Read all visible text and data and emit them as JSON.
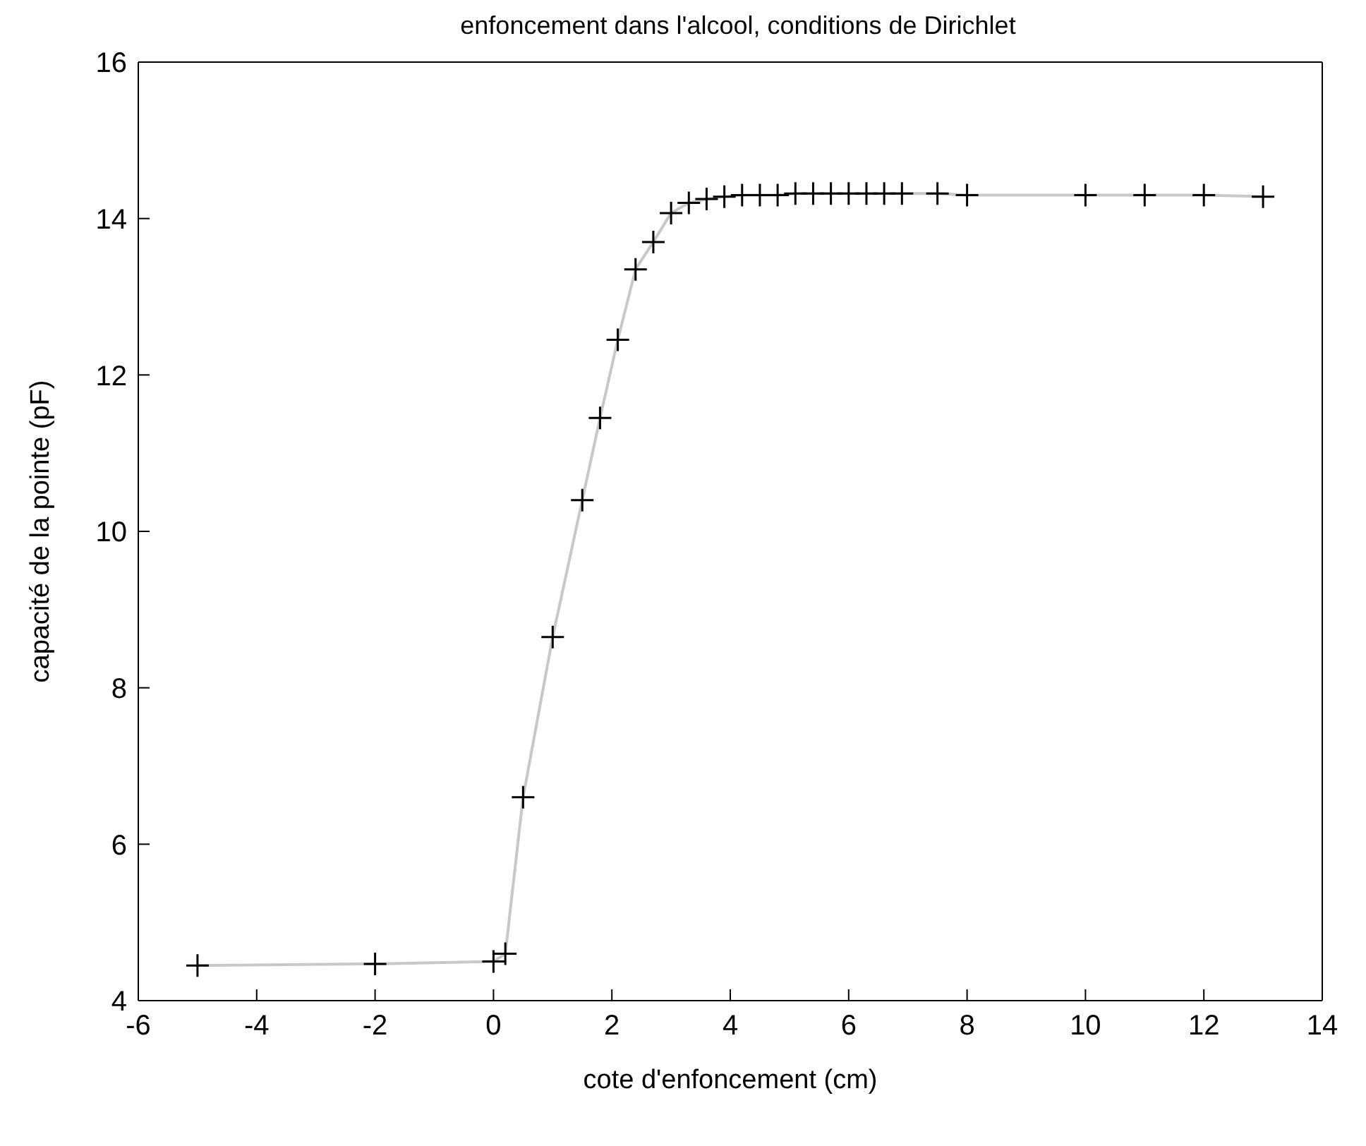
{
  "chart_data": {
    "type": "line",
    "title": "enfoncement dans l'alcool, conditions de Dirichlet",
    "xlabel": "cote d'enfoncement (cm)",
    "ylabel": "capacité de la pointe (pF)",
    "x": [
      -5,
      -2,
      0,
      0.2,
      0.5,
      1.0,
      1.5,
      1.8,
      2.1,
      2.4,
      2.7,
      3.0,
      3.3,
      3.6,
      3.9,
      4.2,
      4.5,
      4.8,
      5.1,
      5.4,
      5.7,
      6.0,
      6.3,
      6.6,
      6.9,
      7.5,
      8,
      10,
      11,
      12,
      13
    ],
    "series": [
      {
        "color": "#c8c8c8",
        "marker": "none",
        "values": [
          4.45,
          4.47,
          4.5,
          4.6,
          6.6,
          8.65,
          10.4,
          11.45,
          12.45,
          13.35,
          13.7,
          14.07,
          14.2,
          14.25,
          14.28,
          14.3,
          14.3,
          14.3,
          14.32,
          14.32,
          14.32,
          14.32,
          14.32,
          14.32,
          14.32,
          14.32,
          14.3,
          14.3,
          14.3,
          14.3,
          14.28
        ]
      },
      {
        "type": "scatter",
        "color": "#000000",
        "marker": "cross",
        "values": [
          4.45,
          4.47,
          4.5,
          4.6,
          6.6,
          8.65,
          10.4,
          11.45,
          12.45,
          13.35,
          13.7,
          14.07,
          14.2,
          14.25,
          14.28,
          14.3,
          14.3,
          14.3,
          14.32,
          14.32,
          14.32,
          14.32,
          14.32,
          14.32,
          14.32,
          14.32,
          14.3,
          14.3,
          14.3,
          14.3,
          14.28
        ]
      }
    ],
    "xlim": [
      -6,
      14
    ],
    "xticks": [
      -6,
      -4,
      -2,
      0,
      2,
      4,
      6,
      8,
      10,
      12,
      14
    ],
    "ylim": [
      4,
      16
    ],
    "yticks": [
      4,
      6,
      8,
      10,
      12,
      14,
      16
    ],
    "grid": false,
    "legend": false
  }
}
